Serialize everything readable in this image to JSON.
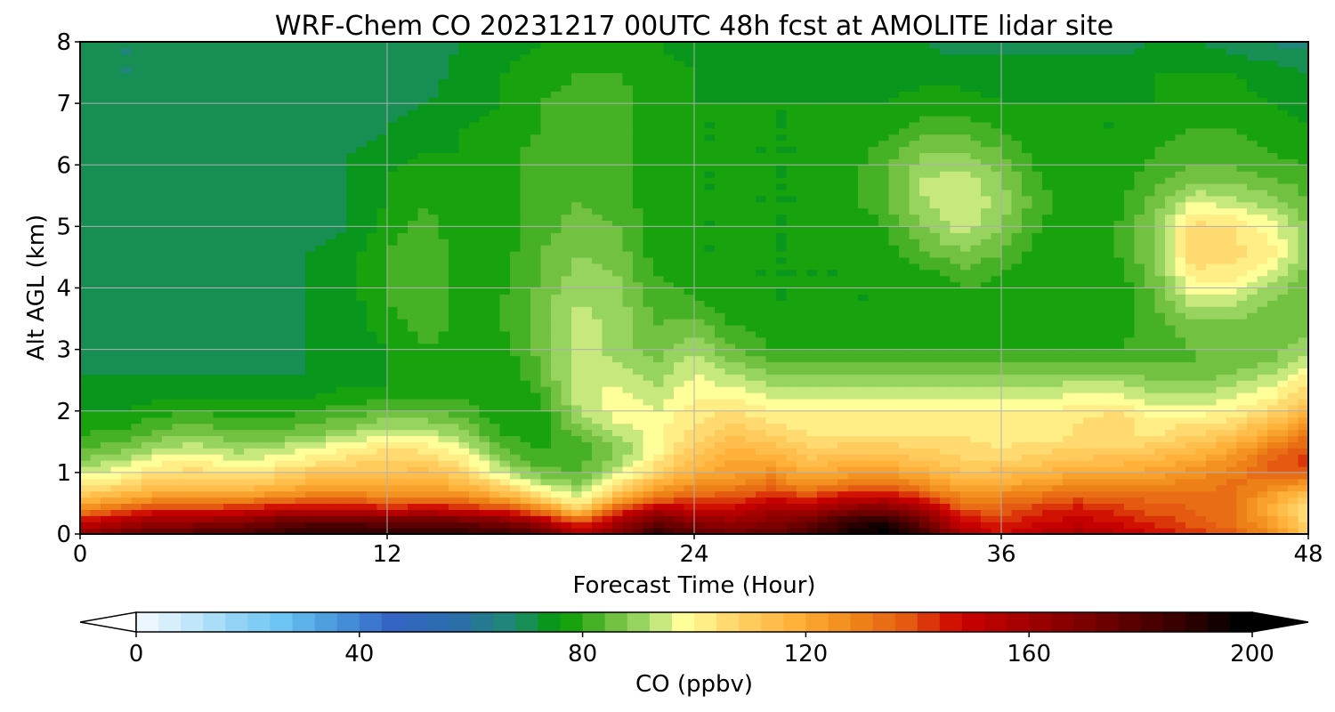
{
  "chart_data": {
    "type": "heatmap",
    "title": "WRF-Chem CO  20231217 00UTC 48h fcst at AMOLITE lidar site",
    "xlabel": "Forecast Time (Hour)",
    "ylabel": "Alt AGL (km)",
    "xlim": [
      0,
      48
    ],
    "ylim": [
      0,
      8
    ],
    "x_ticks": [
      "0",
      "12",
      "24",
      "36",
      "48"
    ],
    "y_ticks": [
      "0",
      "1",
      "2",
      "3",
      "4",
      "5",
      "6",
      "7",
      "8"
    ],
    "grid": true,
    "colorbar": {
      "label": "CO  (ppbv)",
      "range": [
        0,
        200
      ],
      "ticks": [
        "0",
        "40",
        "80",
        "120",
        "160",
        "200"
      ],
      "extend": "both",
      "orientation": "horizontal",
      "colors": [
        [
          0,
          "#ffffff"
        ],
        [
          10,
          "#cdebfa"
        ],
        [
          20,
          "#92d3f5"
        ],
        [
          28,
          "#6cc4f3"
        ],
        [
          36,
          "#4d9fe0"
        ],
        [
          48,
          "#3465c5"
        ],
        [
          60,
          "#2a6fa8"
        ],
        [
          70,
          "#1e8a70"
        ],
        [
          78,
          "#009a00"
        ],
        [
          86,
          "#5fb832"
        ],
        [
          94,
          "#a9dc6e"
        ],
        [
          100,
          "#ffff99"
        ],
        [
          110,
          "#ffd166"
        ],
        [
          120,
          "#ffb13a"
        ],
        [
          130,
          "#f08a1a"
        ],
        [
          140,
          "#e45a10"
        ],
        [
          150,
          "#cc0000"
        ],
        [
          162,
          "#a00000"
        ],
        [
          175,
          "#700000"
        ],
        [
          188,
          "#3a0000"
        ],
        [
          200,
          "#000000"
        ]
      ]
    },
    "x_hours": [
      0,
      1.5,
      3,
      4.5,
      6,
      7.5,
      9,
      10.5,
      12,
      13.5,
      15,
      16.5,
      18,
      19.5,
      21,
      22.5,
      24,
      25.5,
      27,
      28.5,
      30,
      31.5,
      33,
      34.5,
      36,
      37.5,
      39,
      40.5,
      42,
      43.5,
      45,
      46.5,
      48
    ],
    "alt_km": [
      0,
      0.2,
      0.4,
      0.6,
      0.8,
      1.0,
      1.2,
      1.4,
      1.6,
      1.8,
      2.0,
      2.2,
      2.4,
      2.6,
      2.8,
      3.0,
      3.4,
      3.8,
      4.2,
      4.6,
      5.0,
      5.4,
      5.8,
      6.2,
      6.6,
      7.0,
      7.5,
      8.0
    ],
    "co_ppbv": [
      [
        165,
        172,
        180,
        182,
        184,
        188,
        192,
        192,
        190,
        190,
        190,
        188,
        180,
        160,
        170,
        190,
        182,
        175,
        178,
        185,
        195,
        200,
        185,
        160,
        150,
        155,
        160,
        155,
        150,
        145,
        140,
        130,
        112
      ],
      [
        150,
        158,
        165,
        166,
        168,
        175,
        180,
        180,
        178,
        178,
        176,
        172,
        162,
        140,
        160,
        178,
        168,
        165,
        170,
        175,
        190,
        195,
        175,
        150,
        145,
        150,
        152,
        150,
        145,
        140,
        135,
        125,
        108
      ],
      [
        130,
        138,
        145,
        146,
        148,
        152,
        155,
        155,
        150,
        152,
        150,
        145,
        130,
        112,
        140,
        160,
        152,
        152,
        160,
        160,
        170,
        172,
        160,
        140,
        140,
        145,
        148,
        145,
        140,
        138,
        135,
        122,
        106
      ],
      [
        115,
        120,
        125,
        126,
        126,
        130,
        134,
        135,
        130,
        132,
        130,
        122,
        108,
        98,
        118,
        135,
        140,
        142,
        148,
        145,
        152,
        154,
        145,
        130,
        132,
        136,
        140,
        138,
        136,
        136,
        135,
        124,
        110
      ],
      [
        104,
        108,
        114,
        115,
        112,
        116,
        120,
        122,
        120,
        122,
        118,
        108,
        96,
        90,
        104,
        120,
        128,
        130,
        136,
        128,
        134,
        136,
        128,
        120,
        122,
        126,
        130,
        130,
        130,
        132,
        135,
        132,
        125
      ],
      [
        96,
        100,
        106,
        108,
        104,
        108,
        112,
        115,
        114,
        116,
        110,
        96,
        88,
        85,
        96,
        110,
        120,
        125,
        128,
        120,
        124,
        126,
        120,
        114,
        116,
        118,
        122,
        122,
        124,
        128,
        132,
        138,
        140
      ],
      [
        90,
        94,
        100,
        102,
        98,
        100,
        104,
        108,
        110,
        110,
        104,
        90,
        84,
        84,
        92,
        104,
        116,
        122,
        122,
        115,
        118,
        118,
        114,
        110,
        110,
        112,
        115,
        116,
        118,
        122,
        128,
        138,
        145
      ],
      [
        86,
        88,
        94,
        96,
        92,
        94,
        98,
        102,
        106,
        104,
        98,
        86,
        82,
        84,
        90,
        100,
        112,
        118,
        116,
        110,
        112,
        112,
        110,
        108,
        106,
        108,
        110,
        110,
        112,
        116,
        122,
        132,
        140
      ],
      [
        82,
        84,
        88,
        90,
        88,
        88,
        90,
        94,
        100,
        98,
        92,
        82,
        80,
        86,
        94,
        100,
        108,
        114,
        110,
        106,
        106,
        106,
        106,
        106,
        104,
        104,
        106,
        106,
        106,
        110,
        114,
        124,
        134
      ],
      [
        80,
        80,
        84,
        86,
        84,
        84,
        86,
        88,
        92,
        92,
        88,
        80,
        80,
        90,
        98,
        100,
        106,
        110,
        106,
        104,
        104,
        104,
        104,
        104,
        104,
        104,
        106,
        108,
        104,
        106,
        108,
        116,
        126
      ],
      [
        78,
        78,
        80,
        82,
        80,
        80,
        82,
        84,
        86,
        86,
        84,
        78,
        80,
        94,
        100,
        98,
        104,
        106,
        102,
        102,
        102,
        102,
        102,
        102,
        102,
        102,
        104,
        106,
        100,
        100,
        102,
        108,
        118
      ],
      [
        76,
        76,
        78,
        78,
        78,
        78,
        78,
        80,
        82,
        82,
        82,
        78,
        82,
        96,
        100,
        96,
        102,
        102,
        98,
        98,
        98,
        98,
        98,
        98,
        98,
        98,
        100,
        100,
        96,
        96,
        98,
        102,
        112
      ],
      [
        74,
        74,
        76,
        76,
        76,
        76,
        76,
        78,
        78,
        80,
        80,
        78,
        84,
        98,
        98,
        94,
        100,
        98,
        94,
        94,
        94,
        94,
        94,
        94,
        94,
        94,
        96,
        96,
        92,
        92,
        94,
        98,
        108
      ],
      [
        74,
        74,
        74,
        74,
        74,
        74,
        74,
        76,
        78,
        80,
        80,
        78,
        86,
        98,
        96,
        92,
        98,
        94,
        90,
        90,
        90,
        90,
        90,
        90,
        90,
        90,
        90,
        90,
        88,
        88,
        90,
        94,
        102
      ],
      [
        72,
        72,
        72,
        72,
        72,
        72,
        74,
        76,
        78,
        80,
        80,
        78,
        86,
        96,
        94,
        90,
        96,
        90,
        86,
        86,
        86,
        86,
        86,
        86,
        86,
        86,
        86,
        86,
        86,
        86,
        88,
        90,
        98
      ],
      [
        72,
        72,
        72,
        72,
        72,
        72,
        74,
        76,
        78,
        82,
        80,
        80,
        88,
        96,
        92,
        88,
        94,
        86,
        82,
        82,
        82,
        82,
        82,
        82,
        82,
        82,
        82,
        82,
        84,
        86,
        86,
        88,
        92
      ],
      [
        72,
        72,
        72,
        72,
        72,
        72,
        74,
        76,
        80,
        84,
        80,
        82,
        88,
        96,
        92,
        86,
        88,
        82,
        80,
        80,
        80,
        80,
        80,
        80,
        80,
        80,
        80,
        80,
        84,
        88,
        88,
        86,
        88
      ],
      [
        72,
        72,
        72,
        72,
        72,
        72,
        74,
        76,
        82,
        86,
        80,
        82,
        88,
        94,
        92,
        84,
        82,
        78,
        78,
        78,
        78,
        78,
        78,
        80,
        80,
        78,
        78,
        78,
        86,
        96,
        96,
        90,
        86
      ],
      [
        72,
        72,
        72,
        72,
        72,
        72,
        74,
        76,
        82,
        86,
        80,
        80,
        86,
        92,
        90,
        82,
        80,
        78,
        78,
        78,
        78,
        78,
        80,
        84,
        82,
        78,
        78,
        80,
        88,
        104,
        104,
        96,
        88
      ],
      [
        72,
        72,
        72,
        72,
        72,
        72,
        74,
        76,
        82,
        86,
        80,
        80,
        86,
        90,
        88,
        80,
        78,
        78,
        78,
        78,
        78,
        80,
        86,
        90,
        86,
        80,
        78,
        82,
        90,
        110,
        108,
        104,
        92
      ],
      [
        72,
        72,
        72,
        72,
        72,
        72,
        72,
        74,
        80,
        84,
        78,
        80,
        84,
        88,
        86,
        80,
        78,
        78,
        78,
        78,
        78,
        82,
        90,
        96,
        90,
        82,
        78,
        82,
        90,
        108,
        106,
        100,
        90
      ],
      [
        72,
        72,
        72,
        72,
        72,
        72,
        72,
        74,
        78,
        82,
        78,
        80,
        84,
        86,
        84,
        80,
        78,
        78,
        78,
        78,
        80,
        86,
        94,
        98,
        92,
        84,
        78,
        80,
        88,
        98,
        96,
        92,
        86
      ],
      [
        72,
        72,
        72,
        72,
        72,
        72,
        72,
        74,
        78,
        80,
        78,
        80,
        84,
        86,
        84,
        80,
        78,
        78,
        78,
        78,
        80,
        86,
        94,
        96,
        90,
        82,
        78,
        80,
        84,
        88,
        88,
        86,
        84
      ],
      [
        72,
        72,
        72,
        72,
        72,
        72,
        72,
        74,
        76,
        78,
        78,
        80,
        84,
        86,
        84,
        80,
        78,
        78,
        78,
        78,
        80,
        84,
        90,
        90,
        86,
        80,
        78,
        80,
        82,
        84,
        84,
        82,
        80
      ],
      [
        72,
        72,
        72,
        72,
        72,
        72,
        72,
        72,
        74,
        76,
        78,
        80,
        82,
        86,
        84,
        80,
        78,
        78,
        78,
        78,
        78,
        80,
        84,
        84,
        82,
        78,
        78,
        78,
        80,
        82,
        82,
        80,
        78
      ],
      [
        72,
        72,
        72,
        72,
        72,
        72,
        72,
        72,
        72,
        74,
        76,
        78,
        82,
        84,
        84,
        80,
        78,
        78,
        78,
        78,
        78,
        78,
        80,
        80,
        78,
        78,
        78,
        78,
        78,
        80,
        80,
        78,
        76
      ],
      [
        72,
        70,
        70,
        70,
        72,
        72,
        72,
        72,
        72,
        72,
        76,
        78,
        80,
        82,
        82,
        80,
        78,
        76,
        76,
        76,
        76,
        76,
        76,
        76,
        76,
        76,
        76,
        76,
        78,
        78,
        78,
        76,
        74
      ],
      [
        72,
        70,
        70,
        70,
        70,
        72,
        72,
        72,
        72,
        72,
        74,
        76,
        78,
        80,
        80,
        78,
        76,
        74,
        74,
        74,
        74,
        74,
        74,
        72,
        72,
        72,
        72,
        72,
        74,
        74,
        72,
        70,
        68
      ]
    ]
  }
}
